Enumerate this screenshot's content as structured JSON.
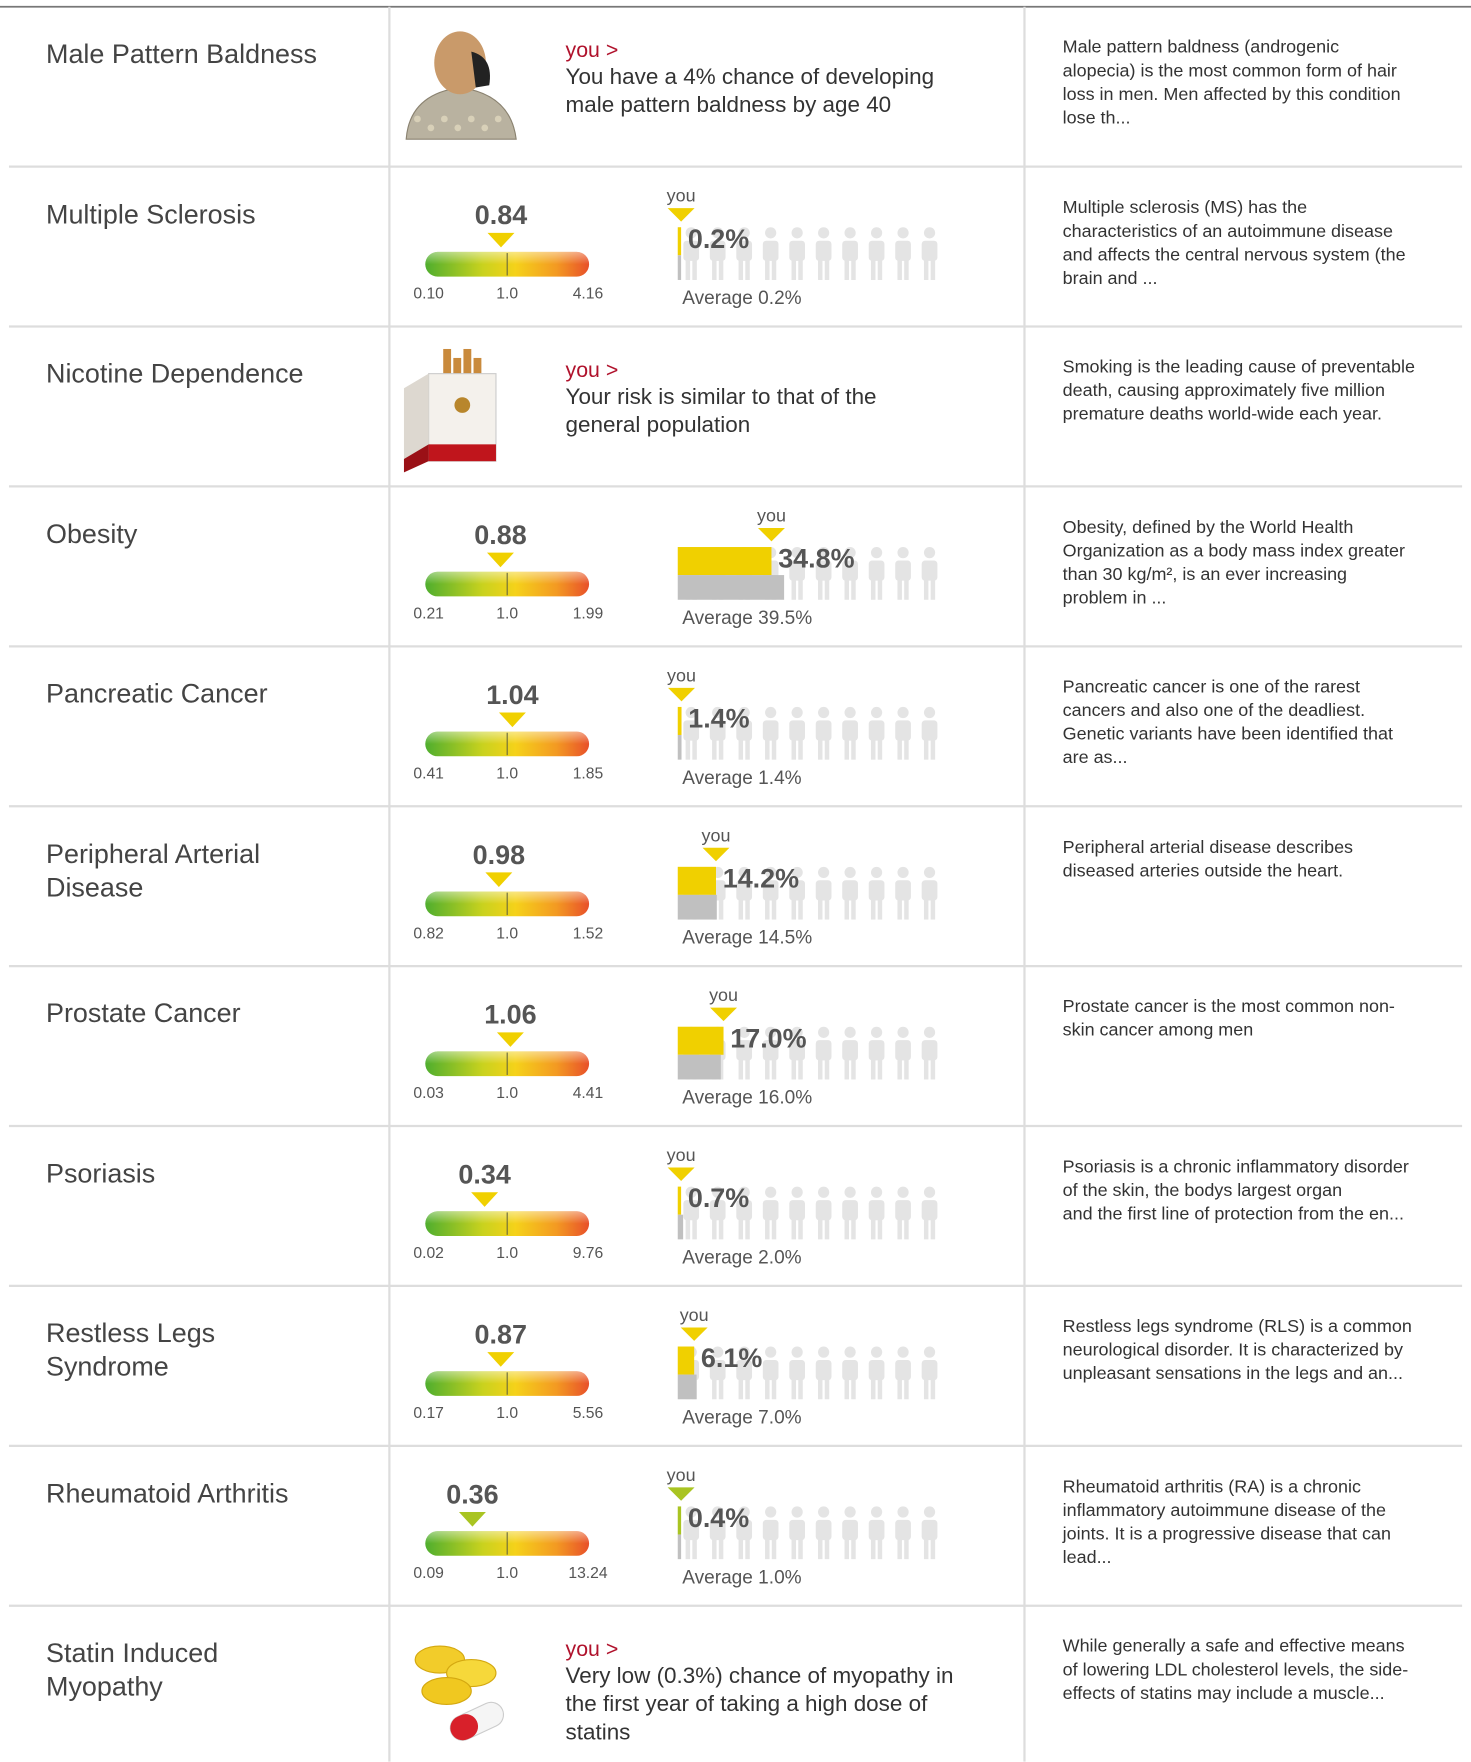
{
  "rows": [
    {
      "title": [
        "Male Pattern Baldness"
      ],
      "you_link": "you >",
      "result": [
        "You have a 4% chance of developing",
        "male pattern baldness by age 40"
      ],
      "description": [
        "Male pattern baldness (androgenic",
        "alopecia) is the most common form of hair",
        "loss in men. Men affected by this condition",
        "lose th..."
      ]
    },
    {
      "title": [
        "Multiple Sclerosis"
      ],
      "gauge": {
        "value": 0.84,
        "ticks": [
          {
            "value": 0.1,
            "label": "0.10"
          },
          {
            "value": 1,
            "label": "1.0"
          },
          4.16
        ]
      },
      "risk": {
        "you_label": "you",
        "you": 0.2,
        "you_text": "0.2%",
        "average": 0.2,
        "average_text": "Average 0.2%"
      },
      "description": [
        "Multiple sclerosis (MS) has the",
        "characteristics of an autoimmune disease",
        "and affects the central nervous system (the",
        "brain and ..."
      ]
    },
    {
      "title": [
        "Nicotine Dependence"
      ],
      "you_link": "you >",
      "result": [
        "Your risk is similar to that of the",
        "general population"
      ],
      "description": [
        "Smoking is the leading cause of preventable",
        "death, causing approximately five million",
        "premature deaths world-wide each year."
      ]
    },
    {
      "title": [
        "Obesity"
      ],
      "gauge": {
        "value": 0.88,
        "ticks": [
          0.21,
          {
            "value": 1,
            "label": "1.0"
          },
          1.99
        ]
      },
      "risk": {
        "you_label": "you",
        "you": 34.8,
        "you_text": "34.8%",
        "average": 39.5,
        "average_text": "Average 39.5%"
      },
      "description": [
        "Obesity, defined by the World Health",
        "Organization as a body mass index greater",
        "than 30 kg/m², is an ever increasing",
        "problem in ..."
      ]
    },
    {
      "title": [
        "Pancreatic Cancer"
      ],
      "gauge": {
        "value": 1.04,
        "ticks": [
          0.41,
          {
            "value": 1,
            "label": "1.0"
          },
          1.85
        ]
      },
      "risk": {
        "you_label": "you",
        "you": 1.4,
        "you_text": "1.4%",
        "average": 1.4,
        "average_text": "Average 1.4%"
      },
      "description": [
        "Pancreatic cancer is one of the rarest",
        "cancers and also one of the deadliest.",
        "Genetic variants have been identified that",
        "are as..."
      ]
    },
    {
      "title": [
        "Peripheral Arterial",
        "Disease"
      ],
      "gauge": {
        "value": 0.98,
        "ticks": [
          0.82,
          {
            "value": 1,
            "label": "1.0"
          },
          1.52
        ]
      },
      "risk": {
        "you_label": "you",
        "you": 14.2,
        "you_text": "14.2%",
        "average": 14.5,
        "average_text": "Average 14.5%"
      },
      "description": [
        "Peripheral arterial disease describes",
        "diseased arteries outside the heart."
      ]
    },
    {
      "title": [
        "Prostate Cancer"
      ],
      "gauge": {
        "value": 1.06,
        "ticks": [
          0.03,
          {
            "value": 1,
            "label": "1.0"
          },
          4.41
        ]
      },
      "risk": {
        "you_label": "you",
        "you": 17,
        "you_text": "17.0%",
        "average": 16,
        "average_text": "Average 16.0%"
      },
      "description": [
        "Prostate cancer is the most common non-",
        "skin cancer among men"
      ]
    },
    {
      "title": [
        "Psoriasis"
      ],
      "gauge": {
        "value": 0.34,
        "ticks": [
          0.02,
          {
            "value": 1,
            "label": "1.0"
          },
          9.76
        ]
      },
      "risk": {
        "you_label": "you",
        "you": 0.7,
        "you_text": "0.7%",
        "average": 2,
        "average_text": "Average 2.0%"
      },
      "description": [
        "Psoriasis is a chronic inflammatory disorder",
        "of the skin, the bodys largest organ",
        "and the first line of protection from the en..."
      ]
    },
    {
      "title": [
        "Restless Legs",
        "Syndrome"
      ],
      "gauge": {
        "value": 0.87,
        "ticks": [
          0.17,
          {
            "value": 1,
            "label": "1.0"
          },
          5.56
        ]
      },
      "risk": {
        "you_label": "you",
        "you": 6.1,
        "you_text": "6.1%",
        "average": 7,
        "average_text": "Average 7.0%"
      },
      "description": [
        "Restless legs syndrome (RLS) is a common",
        "neurological disorder. It is characterized by",
        "unpleasant sensations in the legs and an..."
      ]
    },
    {
      "title": [
        "Rheumatoid Arthritis"
      ],
      "gauge": {
        "value": 0.36,
        "ticks": [
          0.09,
          {
            "value": 1,
            "label": "1.0"
          },
          13.24
        ]
      },
      "risk": {
        "you_label": "you",
        "you": 0.4,
        "you_text": "0.4%",
        "average": 1,
        "average_text": "Average 1.0%"
      },
      "description": [
        "Rheumatoid arthritis (RA) is a chronic",
        "inflammatory autoimmune disease of the",
        "joints. It is a progressive disease that can",
        "lead..."
      ]
    },
    {
      "title": [
        "Statin Induced",
        "Myopathy"
      ],
      "you_link": "you >",
      "result": [
        "Very low (0.3%) chance of myopathy in",
        "the first year of taking a high dose of",
        "statins"
      ],
      "description": [
        "While generally a safe and effective means",
        "of lowering LDL cholesterol levels, the side-",
        "effects of statins may include a muscle..."
      ]
    }
  ]
}
